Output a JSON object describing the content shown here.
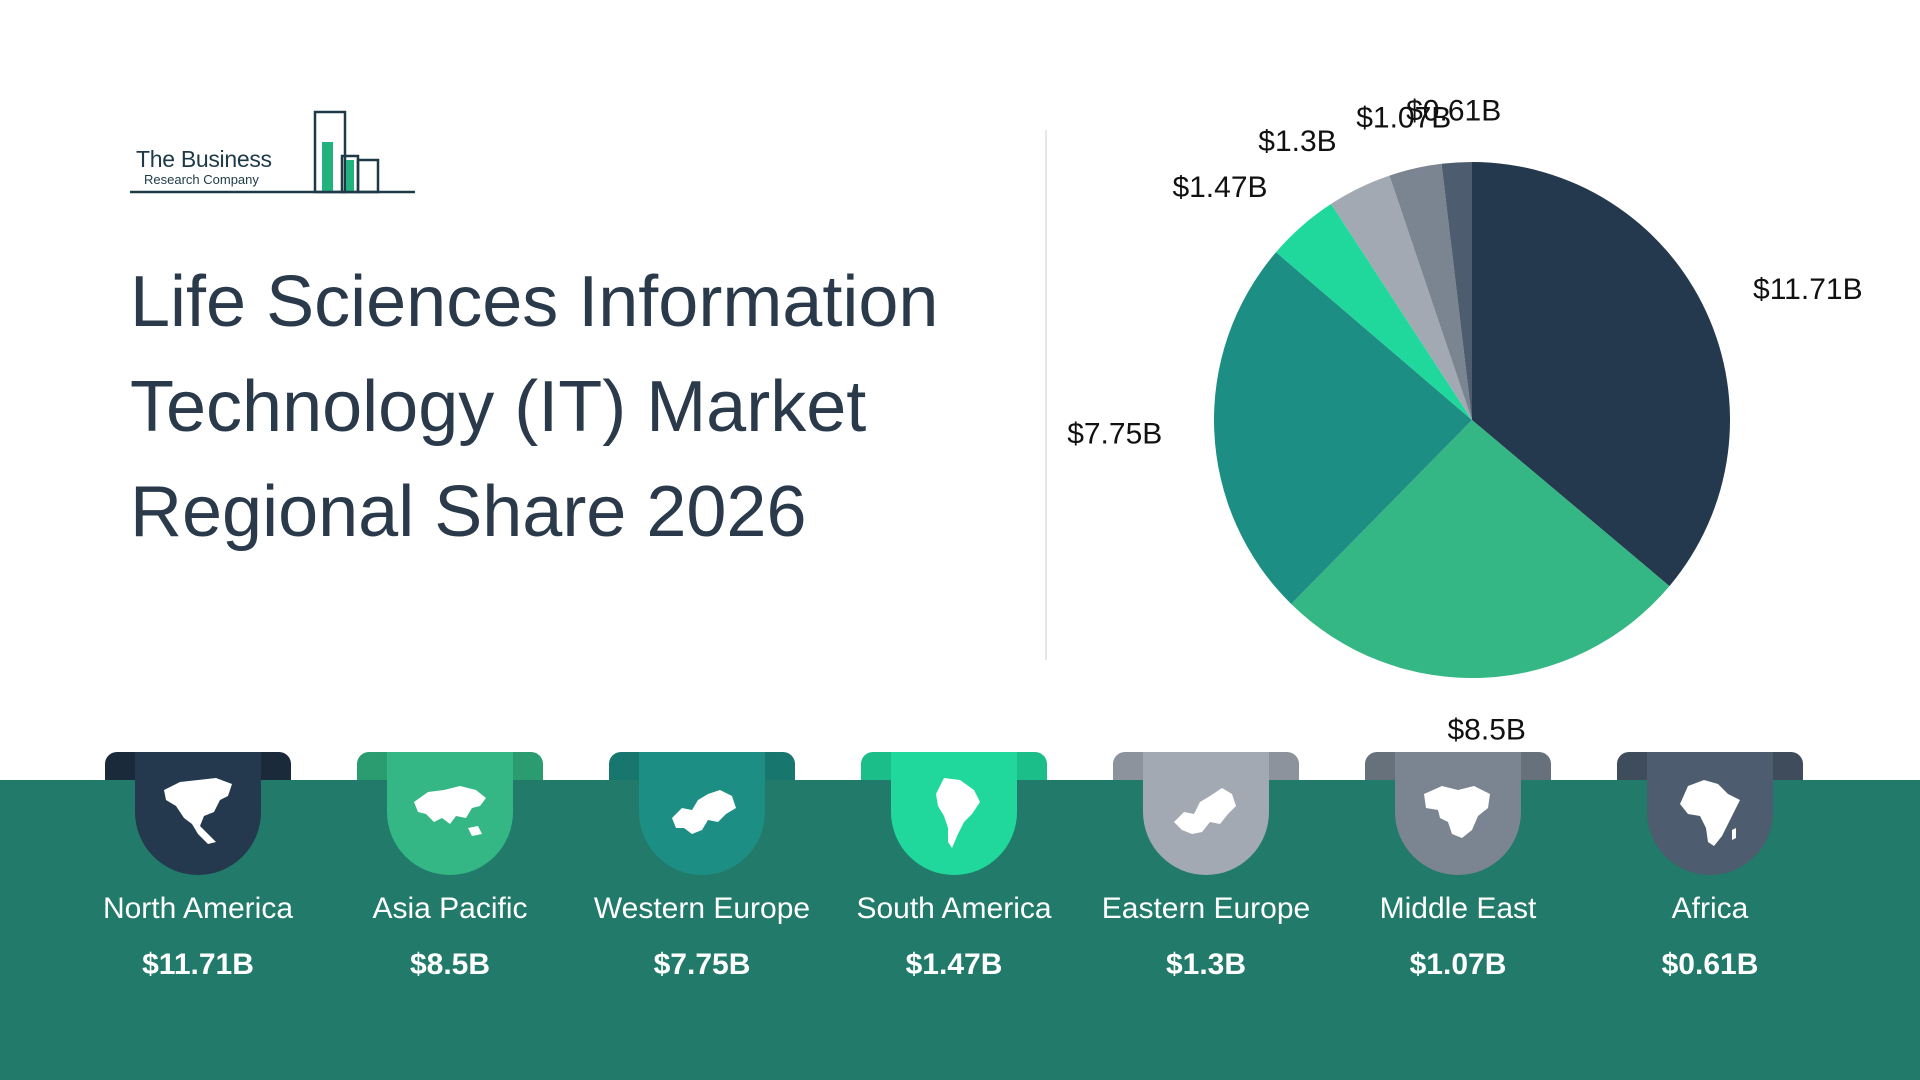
{
  "logo": {
    "line1": "The Business",
    "line2": "Research Company"
  },
  "title": "Life Sciences Information Technology (IT) Market Regional Share 2026",
  "colors": {
    "band": "#217a6a",
    "title_text": "#2a3a4a",
    "north_america": "#24384e",
    "asia_pacific": "#34b784",
    "western_europe": "#1d8e83",
    "south_america": "#21d89c",
    "eastern_europe": "#a3a9b3",
    "middle_east": "#7a8591",
    "africa": "#4d5c6e"
  },
  "chart_data": {
    "type": "pie",
    "title": "",
    "start": "12 o'clock, clockwise",
    "slices": [
      {
        "label": "North America",
        "value": 11.71,
        "value_label": "$11.71B",
        "color": "#24384e"
      },
      {
        "label": "Asia Pacific",
        "value": 8.5,
        "value_label": "$8.5B",
        "color": "#34b784"
      },
      {
        "label": "Western Europe",
        "value": 7.75,
        "value_label": "$7.75B",
        "color": "#1d8e83"
      },
      {
        "label": "South America",
        "value": 1.47,
        "value_label": "$1.47B",
        "color": "#21d89c"
      },
      {
        "label": "Eastern Europe",
        "value": 1.3,
        "value_label": "$1.3B",
        "color": "#a3a9b3"
      },
      {
        "label": "Middle East",
        "value": 1.07,
        "value_label": "$1.07B",
        "color": "#7a8591"
      },
      {
        "label": "Africa",
        "value": 0.61,
        "value_label": "$0.61B",
        "color": "#4d5c6e"
      }
    ]
  },
  "regions": [
    {
      "name": "North America",
      "value": "$11.71B",
      "icon": "north-america-map-icon"
    },
    {
      "name": "Asia Pacific",
      "value": "$8.5B",
      "icon": "asia-map-icon"
    },
    {
      "name": "Western Europe",
      "value": "$7.75B",
      "icon": "western-europe-map-icon"
    },
    {
      "name": "South America",
      "value": "$1.47B",
      "icon": "south-america-map-icon"
    },
    {
      "name": "Eastern Europe",
      "value": "$1.3B",
      "icon": "eastern-europe-map-icon"
    },
    {
      "name": "Middle East",
      "value": "$1.07B",
      "icon": "middle-east-map-icon"
    },
    {
      "name": "Africa",
      "value": "$0.61B",
      "icon": "africa-map-icon"
    }
  ]
}
